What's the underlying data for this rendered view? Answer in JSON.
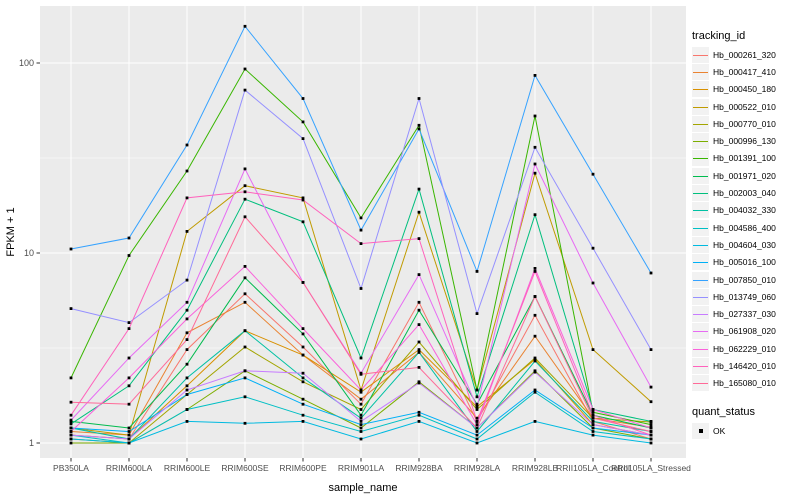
{
  "chart_data": {
    "type": "line",
    "xlabel": "sample_name",
    "ylabel": "FPKM + 1",
    "y_scale": "log10",
    "y_ticks": [
      1,
      10,
      100
    ],
    "y_minor_ticks": [
      3.1623,
      31.623
    ],
    "ylim_px_note": "log scale, decades at 1/10/100",
    "grid": true,
    "legend_position": "right",
    "legend_title": "tracking_id",
    "quant_legend": {
      "title": "quant_status",
      "items": [
        {
          "label": "OK",
          "symbol": "black-square"
        }
      ]
    },
    "panel_bg": "#EBEBEB",
    "grid_color": "#FFFFFF",
    "point_color": "#000000",
    "axis_text_color": "#4D4D4D",
    "categories": [
      "PB350LA",
      "RRIM600LA",
      "RRIM600LE",
      "RRIM600SE",
      "RRIM600PE",
      "RRIM901LA",
      "RRIM928BA",
      "RRIM928LA",
      "RRIM928LB",
      "RRII105LA_Control",
      "RRII105LA_Stressed"
    ],
    "series": [
      {
        "name": "Hb_000261_320",
        "color": "#F8766D",
        "values": [
          1.1,
          1.05,
          3.1,
          6.1,
          3.2,
          1.6,
          5.5,
          1.3,
          4.7,
          1.3,
          1.05
        ]
      },
      {
        "name": "Hb_000417_410",
        "color": "#EA8331",
        "values": [
          1.15,
          1.1,
          3.8,
          5.5,
          2.9,
          1.7,
          3.0,
          1.35,
          3.65,
          1.35,
          1.21
        ]
      },
      {
        "name": "Hb_000450_180",
        "color": "#D89000",
        "values": [
          1.1,
          1.05,
          2.0,
          3.9,
          2.9,
          1.85,
          3.1,
          1.55,
          2.75,
          1.25,
          1.1
        ]
      },
      {
        "name": "Hb_000522_010",
        "color": "#C09B00",
        "values": [
          1.2,
          1.1,
          13.0,
          22.6,
          19.5,
          1.9,
          16.4,
          1.9,
          26.3,
          3.1,
          1.65
        ]
      },
      {
        "name": "Hb_000770_010",
        "color": "#A3A500",
        "values": [
          1.05,
          1.0,
          1.8,
          3.2,
          2.1,
          1.5,
          3.4,
          1.5,
          2.8,
          1.35,
          1.29
        ]
      },
      {
        "name": "Hb_000996_130",
        "color": "#7CAE00",
        "values": [
          1.0,
          1.0,
          1.5,
          2.4,
          1.7,
          1.2,
          2.1,
          1.2,
          2.4,
          1.2,
          1.05
        ]
      },
      {
        "name": "Hb_001391_100",
        "color": "#39B600",
        "values": [
          2.2,
          9.7,
          27.0,
          93.0,
          49.0,
          15.3,
          47.0,
          1.9,
          52.6,
          1.45,
          1.25
        ]
      },
      {
        "name": "Hb_001971_020",
        "color": "#00BB4E",
        "values": [
          1.3,
          1.2,
          2.6,
          7.4,
          3.75,
          1.4,
          5.0,
          1.6,
          5.9,
          1.4,
          1.2
        ]
      },
      {
        "name": "Hb_002003_040",
        "color": "#00BF7D",
        "values": [
          1.26,
          2.0,
          5.0,
          19.2,
          14.6,
          2.8,
          21.7,
          1.75,
          15.9,
          1.5,
          1.3
        ]
      },
      {
        "name": "Hb_004032_330",
        "color": "#00C1A3",
        "values": [
          1.2,
          1.05,
          2.2,
          3.9,
          2.2,
          1.35,
          3.0,
          1.15,
          2.7,
          1.3,
          1.15
        ]
      },
      {
        "name": "Hb_004586_400",
        "color": "#00BFC4",
        "values": [
          1.1,
          1.0,
          1.5,
          1.75,
          1.4,
          1.15,
          1.4,
          1.05,
          1.85,
          1.15,
          1.05
        ]
      },
      {
        "name": "Hb_004604_030",
        "color": "#00BAE0",
        "values": [
          1.05,
          1.0,
          1.3,
          1.27,
          1.3,
          1.05,
          1.3,
          1.0,
          1.3,
          1.1,
          1.0
        ]
      },
      {
        "name": "Hb_005016_100",
        "color": "#00B0F6",
        "values": [
          1.2,
          1.15,
          1.8,
          2.2,
          1.6,
          1.25,
          1.45,
          1.1,
          1.9,
          1.2,
          1.1
        ]
      },
      {
        "name": "Hb_007850_010",
        "color": "#35A2FF",
        "values": [
          10.5,
          12.0,
          37.0,
          156.0,
          65.0,
          13.2,
          45.0,
          8.0,
          86.0,
          26.0,
          7.85
        ]
      },
      {
        "name": "Hb_013749_060",
        "color": "#9590FF",
        "values": [
          5.1,
          4.3,
          7.2,
          72.0,
          40.0,
          6.5,
          65.0,
          4.8,
          36.0,
          10.6,
          3.1
        ]
      },
      {
        "name": "Hb_027337_030",
        "color": "#C77CFF",
        "values": [
          1.1,
          1.05,
          1.9,
          2.4,
          2.33,
          1.3,
          2.07,
          1.2,
          2.36,
          1.25,
          1.1
        ]
      },
      {
        "name": "Hb_061908_020",
        "color": "#E76BF3",
        "values": [
          1.32,
          2.8,
          5.5,
          27.7,
          7.0,
          2.33,
          7.7,
          1.55,
          29.4,
          6.95,
          1.97
        ]
      },
      {
        "name": "Hb_062229_010",
        "color": "#FA62DB",
        "values": [
          1.15,
          2.2,
          4.5,
          8.5,
          4.0,
          1.9,
          4.2,
          1.25,
          8.3,
          1.5,
          1.2
        ]
      },
      {
        "name": "Hb_146420_010",
        "color": "#FF62BC",
        "values": [
          1.4,
          4.0,
          19.5,
          21.0,
          19.0,
          11.2,
          11.9,
          1.3,
          8.0,
          1.4,
          1.1
        ]
      },
      {
        "name": "Hb_165080_010",
        "color": "#FF6A98",
        "values": [
          1.64,
          1.6,
          3.5,
          15.5,
          7.0,
          2.3,
          2.5,
          1.2,
          5.9,
          1.35,
          1.15
        ]
      }
    ]
  }
}
